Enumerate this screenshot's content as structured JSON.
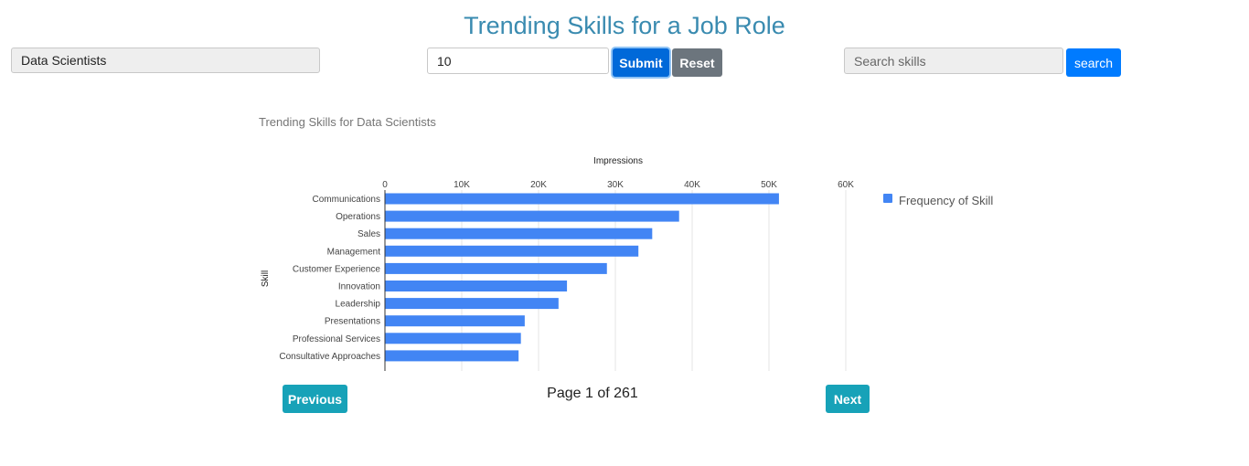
{
  "header": {
    "title": "Trending Skills for a Job Role"
  },
  "controls": {
    "role_value": "Data Scientists",
    "count_value": "10",
    "submit_label": "Submit",
    "reset_label": "Reset",
    "search_placeholder": "Search skills",
    "search_label": "search"
  },
  "pagination": {
    "previous_label": "Previous",
    "next_label": "Next",
    "page_text": "Page 1 of 261"
  },
  "colors": {
    "bar": "#4285f4",
    "title": "#3a8bb0",
    "submit": "#0069d9",
    "reset": "#6c757d",
    "search": "#007bff",
    "pager": "#17a2b8"
  },
  "chart_data": {
    "type": "bar",
    "orientation": "horizontal",
    "title": "Trending Skills for Data Scientists",
    "xlabel": "Impressions",
    "ylabel": "Skill",
    "xlim": [
      0,
      60000
    ],
    "x_ticks": [
      0,
      10000,
      20000,
      30000,
      40000,
      50000,
      60000
    ],
    "x_tick_labels": [
      "0",
      "10K",
      "20K",
      "30K",
      "40K",
      "50K",
      "60K"
    ],
    "x_axis_position": "top",
    "grid": true,
    "legend_position": "right",
    "categories": [
      "Communications",
      "Operations",
      "Sales",
      "Management",
      "Customer Experience",
      "Innovation",
      "Leadership",
      "Presentations",
      "Professional Services",
      "Consultative Approaches"
    ],
    "series": [
      {
        "name": "Frequency of Skill",
        "values": [
          51300,
          38300,
          34800,
          33000,
          28900,
          23700,
          22600,
          18200,
          17700,
          17400
        ]
      }
    ]
  }
}
